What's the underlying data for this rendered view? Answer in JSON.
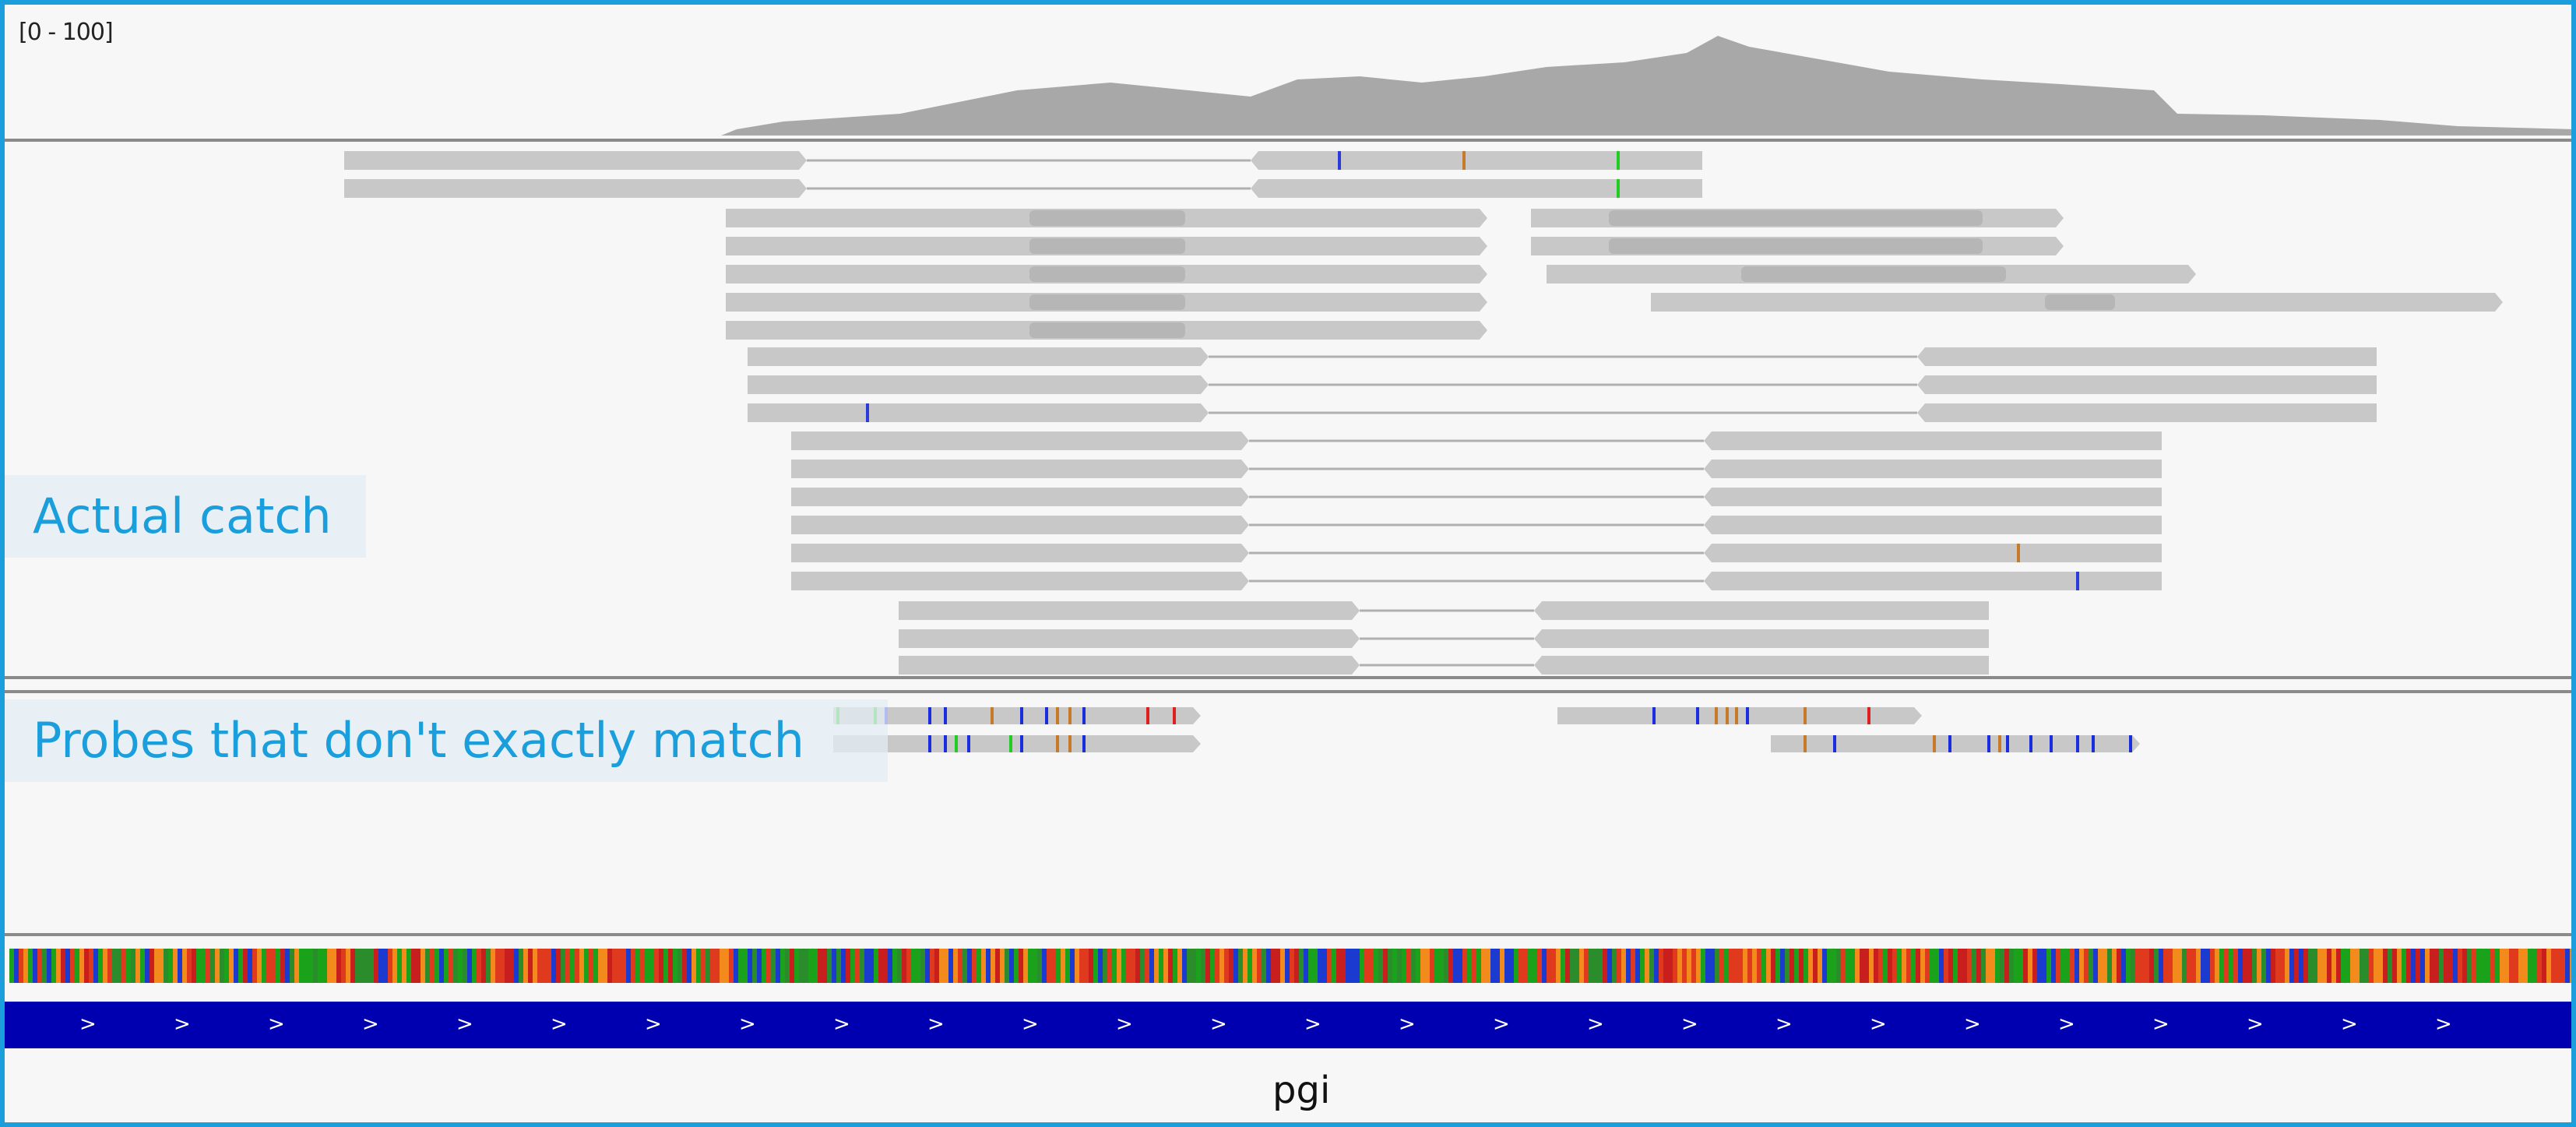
{
  "coverage": {
    "range_label": "[0 - 100]",
    "color": "#a8a8a8"
  },
  "reads": {
    "read_color": "#c8c8c8",
    "intron_color": "#b0b0b0"
  },
  "annotations": {
    "actual_catch": "Actual catch",
    "probes_mismatch": "Probes that don't exactly match",
    "accent_color": "#1a9fdc"
  },
  "gene": {
    "name": "pgi",
    "strand_glyph": ">",
    "color": "#0000b0"
  },
  "sequence_track": {
    "base_colors": [
      "#e03a1e",
      "#f28a1c",
      "#1aa21a",
      "#1a3ad0",
      "#c81e1e",
      "#2a8c2a"
    ]
  },
  "mismatch_colors": {
    "A": "#22cc22",
    "C": "#1a2ee0",
    "G": "#c77a2a",
    "T": "#e02020"
  }
}
